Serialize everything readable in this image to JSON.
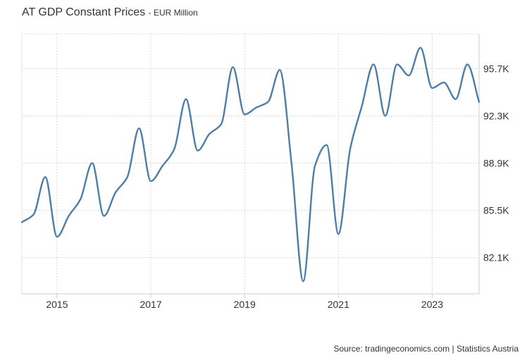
{
  "chart_data": {
    "type": "line",
    "title": "AT GDP Constant Prices",
    "subtitle": "EUR Million",
    "source": "Source: tradingeconomics.com | Statistics Austria",
    "xlabel": "",
    "ylabel": "",
    "xlim": [
      2014.25,
      2024.0
    ],
    "ylim": [
      79500,
      98200
    ],
    "x_ticks": [
      {
        "value": 2015,
        "label": "2015"
      },
      {
        "value": 2017,
        "label": "2017"
      },
      {
        "value": 2019,
        "label": "2019"
      },
      {
        "value": 2021,
        "label": "2021"
      },
      {
        "value": 2023,
        "label": "2023"
      }
    ],
    "y_ticks": [
      {
        "value": 82100,
        "label": "82.1K"
      },
      {
        "value": 85500,
        "label": "85.5K"
      },
      {
        "value": 88900,
        "label": "88.9K"
      },
      {
        "value": 92300,
        "label": "92.3K"
      },
      {
        "value": 95700,
        "label": "95.7K"
      }
    ],
    "grid": true,
    "series": [
      {
        "name": "GDP Constant Prices",
        "color": "#4e7ea6",
        "x": [
          2014.25,
          2014.5,
          2014.75,
          2015.0,
          2015.25,
          2015.5,
          2015.75,
          2016.0,
          2016.25,
          2016.5,
          2016.75,
          2017.0,
          2017.25,
          2017.5,
          2017.75,
          2018.0,
          2018.25,
          2018.5,
          2018.75,
          2019.0,
          2019.25,
          2019.5,
          2019.75,
          2020.0,
          2020.25,
          2020.5,
          2020.75,
          2021.0,
          2021.25,
          2021.5,
          2021.75,
          2022.0,
          2022.25,
          2022.5,
          2022.75,
          2023.0,
          2023.25,
          2023.5,
          2023.75,
          2024.0
        ],
        "values": [
          84650,
          85200,
          87900,
          83600,
          85100,
          86300,
          88900,
          85100,
          86800,
          87900,
          91400,
          87600,
          88700,
          89900,
          93500,
          89800,
          91000,
          91700,
          95800,
          92400,
          92900,
          93300,
          95600,
          88900,
          80400,
          88700,
          90200,
          83800,
          89900,
          93000,
          96000,
          92300,
          96000,
          95200,
          97200,
          94300,
          94700,
          93500,
          96000,
          93300
        ]
      }
    ]
  }
}
